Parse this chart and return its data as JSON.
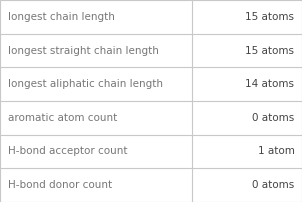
{
  "rows": [
    {
      "label": "longest chain length",
      "value": "15 atoms"
    },
    {
      "label": "longest straight chain length",
      "value": "15 atoms"
    },
    {
      "label": "longest aliphatic chain length",
      "value": "14 atoms"
    },
    {
      "label": "aromatic atom count",
      "value": "0 atoms"
    },
    {
      "label": "H-bond acceptor count",
      "value": "1 atom"
    },
    {
      "label": "H-bond donor count",
      "value": "0 atoms"
    }
  ],
  "bg_color": "#ffffff",
  "border_color": "#c8c8c8",
  "label_color": "#777777",
  "value_color": "#444444",
  "label_fontsize": 7.5,
  "value_fontsize": 7.5,
  "col_split": 0.635,
  "fig_width": 3.02,
  "fig_height": 2.02,
  "dpi": 100
}
